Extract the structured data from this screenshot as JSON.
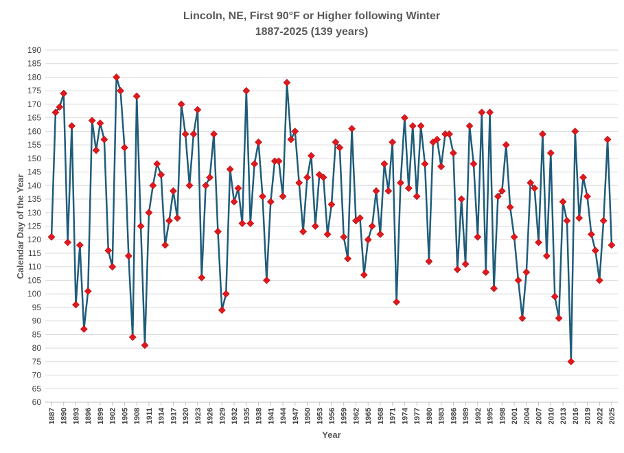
{
  "chart_data": {
    "type": "line",
    "title": "Lincoln, NE, First 90°F or Higher following Winter",
    "subtitle": "1887-2025 (139 years)",
    "xlabel": "Year",
    "ylabel": "Calendar Day of the Year",
    "ylim": [
      60,
      190
    ],
    "yticks": [
      60,
      65,
      70,
      75,
      80,
      85,
      90,
      95,
      100,
      105,
      110,
      115,
      120,
      125,
      130,
      135,
      140,
      145,
      150,
      155,
      160,
      165,
      170,
      175,
      180,
      185,
      190
    ],
    "xlim": [
      1887,
      2025
    ],
    "xticks": [
      1887,
      1890,
      1893,
      1896,
      1899,
      1902,
      1905,
      1908,
      1911,
      1914,
      1917,
      1920,
      1923,
      1926,
      1929,
      1932,
      1935,
      1938,
      1941,
      1944,
      1947,
      1950,
      1953,
      1956,
      1959,
      1962,
      1965,
      1968,
      1971,
      1974,
      1977,
      1980,
      1983,
      1986,
      1989,
      1992,
      1995,
      1998,
      2001,
      2004,
      2007,
      2010,
      2013,
      2016,
      2019,
      2022,
      2025
    ],
    "grid": true,
    "legend": "none",
    "line_color": "#1F5C7A",
    "marker_color": "#E0191D",
    "series": [
      {
        "start_year": 1887,
        "values": [
          121,
          167,
          169,
          174,
          119,
          162,
          96,
          118,
          87,
          101,
          164,
          153,
          163,
          157,
          116,
          110,
          180,
          175,
          154,
          114,
          84,
          173,
          125,
          81,
          130,
          140,
          148,
          144,
          118,
          127,
          138,
          128,
          170,
          159,
          140,
          159,
          168,
          106,
          140,
          143,
          159,
          123,
          94,
          100,
          146,
          134,
          139,
          126,
          175,
          126,
          148,
          156,
          136,
          105,
          134,
          149,
          149,
          136,
          178,
          157,
          160,
          141,
          123,
          143,
          151,
          125,
          144,
          143,
          122,
          133,
          156,
          154,
          121,
          113,
          161,
          127,
          128,
          107,
          120,
          125,
          138,
          122,
          148,
          138,
          156,
          97,
          141,
          165,
          139,
          162,
          136,
          162,
          148,
          112,
          156,
          157,
          147,
          159,
          159,
          152,
          109,
          135,
          111,
          162,
          148,
          121,
          167,
          108,
          167,
          102,
          136,
          138,
          155,
          132,
          121,
          105,
          91,
          108,
          141,
          139,
          119,
          159,
          114,
          152,
          99,
          91,
          134,
          127,
          75,
          160,
          128,
          143,
          136,
          122,
          116,
          105,
          127,
          157,
          118
        ]
      }
    ]
  }
}
